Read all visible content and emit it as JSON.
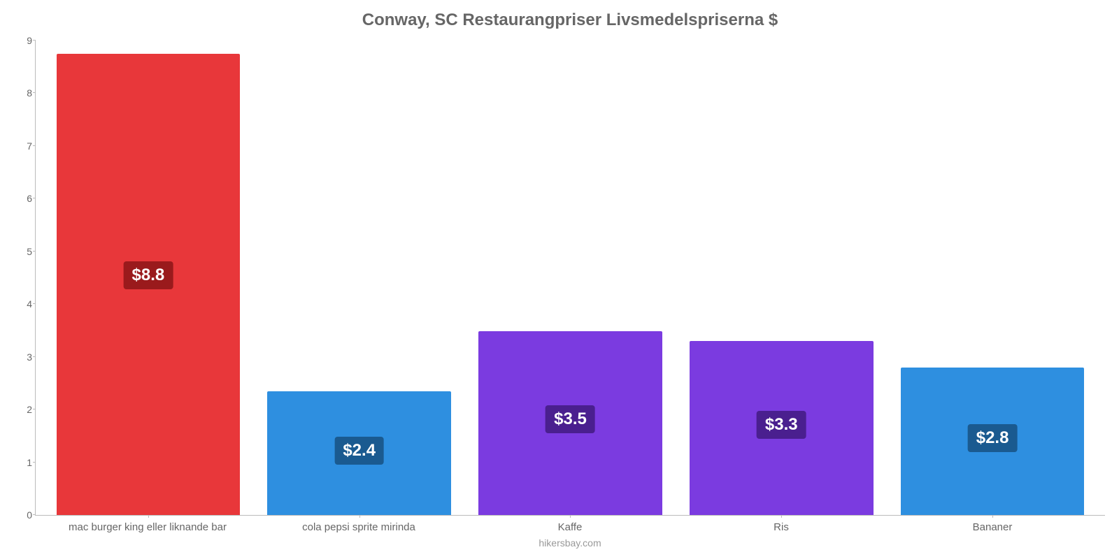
{
  "chart": {
    "type": "bar",
    "title": "Conway, SC Restaurangpriser Livsmedelspriserna $",
    "title_fontsize": 24,
    "title_color": "#666666",
    "background_color": "#ffffff",
    "axis_color": "#bbbbbb",
    "label_color": "#666666",
    "label_fontsize": 15,
    "ylim": [
      0,
      9
    ],
    "ytick_step": 1,
    "yticks": [
      "0",
      "1",
      "2",
      "3",
      "4",
      "5",
      "6",
      "7",
      "8",
      "9"
    ],
    "bar_width": 0.87,
    "categories": [
      "mac burger king eller liknande bar",
      "cola pepsi sprite mirinda",
      "Kaffe",
      "Ris",
      "Bananer"
    ],
    "values": [
      8.75,
      2.35,
      3.48,
      3.3,
      2.8
    ],
    "value_labels": [
      "$8.8",
      "$2.4",
      "$3.5",
      "$3.3",
      "$2.8"
    ],
    "bar_colors": [
      "#e8373a",
      "#2e8fe0",
      "#7b3be0",
      "#7b3be0",
      "#2e8fe0"
    ],
    "badge_colors": [
      "#9a1a1c",
      "#1a5a90",
      "#4a1f8f",
      "#4a1f8f",
      "#1a5a90"
    ],
    "badge_fontsize": 24,
    "badge_text_color": "#ffffff",
    "credit": "hikersbay.com",
    "credit_color": "#999999"
  }
}
